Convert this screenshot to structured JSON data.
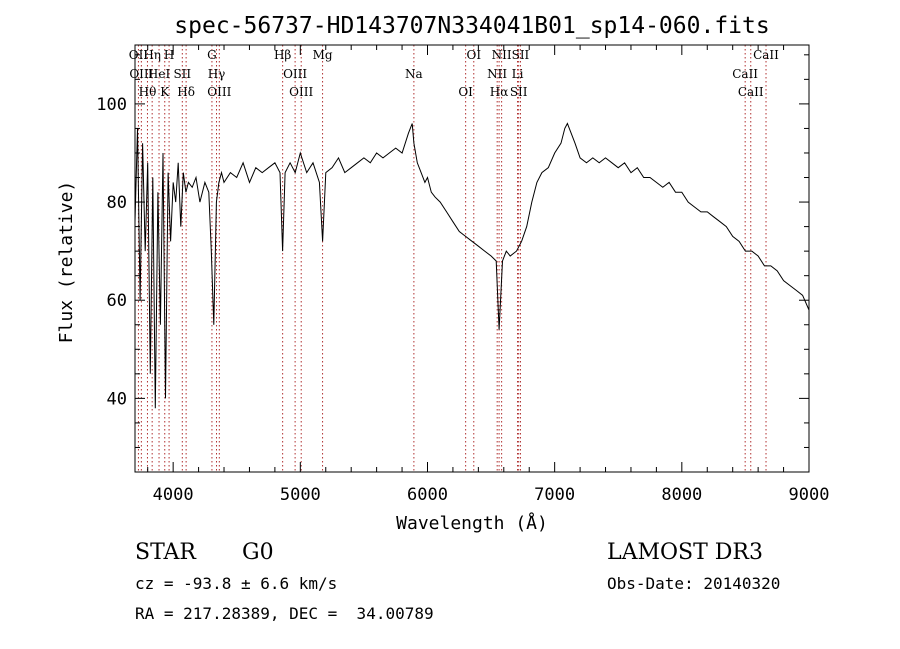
{
  "chart_data": {
    "type": "line",
    "title": "spec-56737-HD143707N334041B01_sp14-060.fits",
    "xlabel": "Wavelength (Å)",
    "ylabel": "Flux (relative)",
    "xlim": [
      3700,
      9000
    ],
    "ylim": [
      25,
      112
    ],
    "x_ticks": [
      4000,
      5000,
      6000,
      7000,
      8000,
      9000
    ],
    "y_ticks": [
      40,
      60,
      80,
      100
    ],
    "grid": false,
    "line_color": "#000000",
    "marker_color": "#b03030",
    "series": [
      {
        "x": [
          3700,
          3720,
          3740,
          3760,
          3780,
          3800,
          3820,
          3840,
          3860,
          3880,
          3900,
          3920,
          3940,
          3960,
          3980,
          4000,
          4020,
          4040,
          4060,
          4080,
          4100,
          4120,
          4150,
          4180,
          4210,
          4250,
          4280,
          4300,
          4320,
          4340,
          4360,
          4380,
          4400,
          4450,
          4500,
          4550,
          4600,
          4650,
          4700,
          4750,
          4800,
          4840,
          4861,
          4880,
          4920,
          4960,
          5000,
          5050,
          5100,
          5150,
          5175,
          5200,
          5250,
          5300,
          5350,
          5400,
          5450,
          5500,
          5550,
          5600,
          5650,
          5700,
          5750,
          5800,
          5850,
          5880,
          5893,
          5920,
          5950,
          5980,
          6000,
          6030,
          6060,
          6100,
          6150,
          6200,
          6250,
          6300,
          6350,
          6400,
          6450,
          6500,
          6540,
          6563,
          6590,
          6620,
          6650,
          6700,
          6740,
          6780,
          6820,
          6860,
          6900,
          6950,
          7000,
          7050,
          7080,
          7100,
          7130,
          7160,
          7200,
          7250,
          7300,
          7350,
          7400,
          7450,
          7500,
          7550,
          7600,
          7650,
          7700,
          7750,
          7800,
          7850,
          7900,
          7950,
          8000,
          8050,
          8100,
          8150,
          8200,
          8250,
          8300,
          8350,
          8400,
          8450,
          8500,
          8550,
          8600,
          8650,
          8700,
          8750,
          8800,
          8850,
          8900,
          8950,
          9000
        ],
        "y": [
          76,
          95,
          60,
          92,
          70,
          88,
          45,
          85,
          38,
          82,
          55,
          90,
          40,
          86,
          72,
          84,
          80,
          88,
          75,
          86,
          82,
          84,
          83,
          85,
          80,
          84,
          82,
          70,
          55,
          80,
          84,
          86,
          84,
          86,
          85,
          88,
          84,
          87,
          86,
          87,
          88,
          86,
          70,
          86,
          88,
          86,
          90,
          86,
          88,
          84,
          72,
          86,
          87,
          89,
          86,
          87,
          88,
          89,
          88,
          90,
          89,
          90,
          91,
          90,
          94,
          96,
          92,
          88,
          86,
          84,
          85,
          82,
          81,
          80,
          78,
          76,
          74,
          73,
          72,
          71,
          70,
          69,
          68,
          54,
          68,
          70,
          69,
          70,
          72,
          75,
          80,
          84,
          86,
          87,
          90,
          92,
          95,
          96,
          94,
          92,
          89,
          88,
          89,
          88,
          89,
          88,
          87,
          88,
          86,
          87,
          85,
          85,
          84,
          83,
          84,
          82,
          82,
          80,
          79,
          78,
          78,
          77,
          76,
          75,
          73,
          72,
          70,
          70,
          69,
          67,
          67,
          66,
          64,
          63,
          62,
          61,
          58
        ]
      }
    ],
    "lines": [
      {
        "name": "OII",
        "x": 3727
      },
      {
        "name": "OIII",
        "x": 3750
      },
      {
        "name": "Hθ",
        "x": 3798
      },
      {
        "name": "Hη",
        "x": 3835
      },
      {
        "name": "HeI",
        "x": 3889
      },
      {
        "name": "K",
        "x": 3934
      },
      {
        "name": "H",
        "x": 3968
      },
      {
        "name": "SII",
        "x": 4072
      },
      {
        "name": "Hδ",
        "x": 4102
      },
      {
        "name": "G",
        "x": 4305
      },
      {
        "name": "Hγ",
        "x": 4341
      },
      {
        "name": "OIII",
        "x": 4363
      },
      {
        "name": "Hβ",
        "x": 4861
      },
      {
        "name": "OIII",
        "x": 4959
      },
      {
        "name": "OIII",
        "x": 5007
      },
      {
        "name": "Mg",
        "x": 5175
      },
      {
        "name": "Na",
        "x": 5893
      },
      {
        "name": "OI",
        "x": 6300
      },
      {
        "name": "OI",
        "x": 6364
      },
      {
        "name": "NII",
        "x": 6548
      },
      {
        "name": "Hα",
        "x": 6563
      },
      {
        "name": "NII",
        "x": 6583
      },
      {
        "name": "Li",
        "x": 6708
      },
      {
        "name": "SII",
        "x": 6717
      },
      {
        "name": "SII",
        "x": 6731
      },
      {
        "name": "CaII",
        "x": 8498
      },
      {
        "name": "CaII",
        "x": 8542
      },
      {
        "name": "CaII",
        "x": 8662
      }
    ]
  },
  "info": {
    "class": "STAR",
    "subclass": "G0",
    "survey": "LAMOST DR3",
    "cz": "cz = -93.8 ± 6.6 km/s",
    "obs_date": "Obs-Date: 20140320",
    "coords": "RA = 217.28389, DEC =  34.00789"
  }
}
